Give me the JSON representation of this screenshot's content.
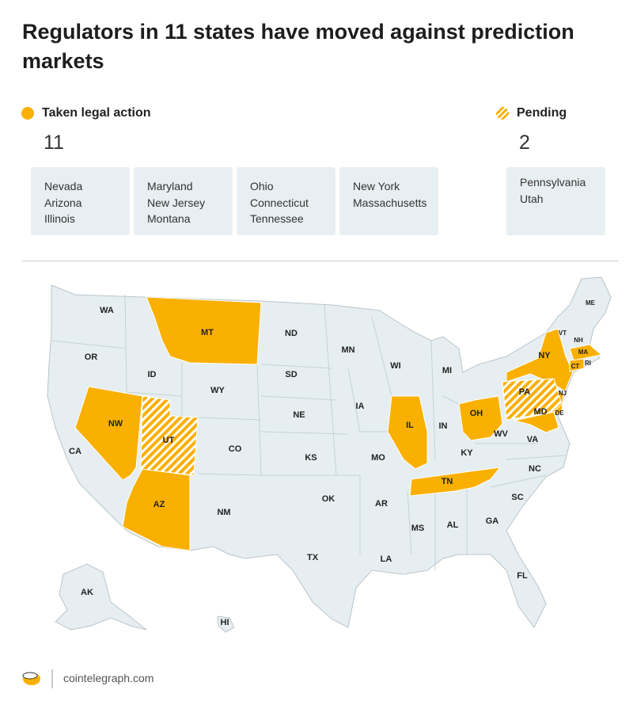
{
  "title": "Regulators in 11 states have moved against prediction markets",
  "legend": {
    "taken": {
      "label": "Taken legal action",
      "count": "11",
      "groups": [
        [
          "Nevada",
          "Arizona",
          "Illinois"
        ],
        [
          "Maryland",
          "New Jersey",
          "Montana"
        ],
        [
          "Ohio",
          "Connecticut",
          "Tennessee"
        ],
        [
          "New York",
          "Massachusetts"
        ]
      ]
    },
    "pending": {
      "label": "Pending",
      "count": "2",
      "groups": [
        [
          "Pennsylvania",
          "Utah"
        ]
      ]
    }
  },
  "map": {
    "taken": [
      "MT",
      "NW",
      "AZ",
      "IL",
      "OH",
      "TN",
      "NY",
      "MA",
      "CT",
      "NJ",
      "MD"
    ],
    "pending": [
      "UT",
      "PA"
    ],
    "other": [
      "WA",
      "OR",
      "CA",
      "ID",
      "WY",
      "CO",
      "NM",
      "ND",
      "SD",
      "NE",
      "KS",
      "OK",
      "TX",
      "MN",
      "IA",
      "MO",
      "AR",
      "LA",
      "MS",
      "AL",
      "WI",
      "MI",
      "IN",
      "KY",
      "WV",
      "VA",
      "NC",
      "SC",
      "GA",
      "FL",
      "ME",
      "VT",
      "NH",
      "RI",
      "DE",
      "AK",
      "HI"
    ]
  },
  "footer": "cointelegraph.com"
}
